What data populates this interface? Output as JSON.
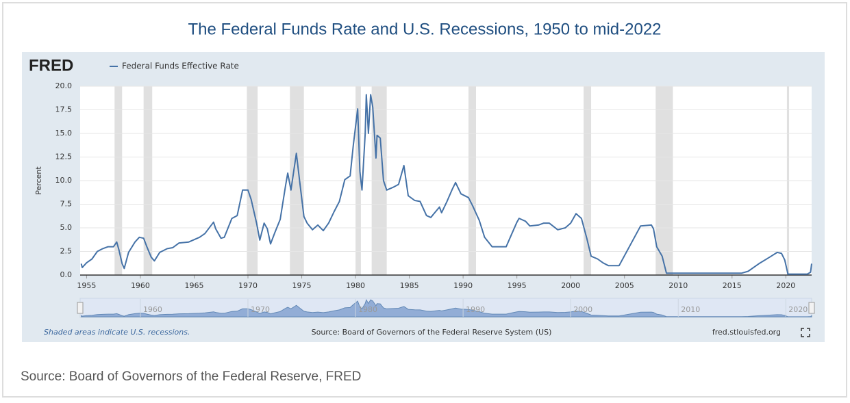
{
  "chart_data": {
    "type": "line",
    "title": "The Federal Funds Rate and U.S. Recessions, 1950 to mid-2022",
    "logo": "FRED",
    "ylabel": "Percent",
    "note": "Shaded areas indicate U.S. recessions.",
    "source": "Source: Board of Governors of the Federal Reserve System (US)",
    "site": "fred.stlouisfed.org",
    "caption": "Source: Board of Governors of the Federal Reserve, FRED",
    "xlim": [
      1954.4,
      2022.4
    ],
    "xticks": [
      1955,
      1960,
      1965,
      1970,
      1975,
      1980,
      1985,
      1990,
      1995,
      2000,
      2005,
      2010,
      2015,
      2020
    ],
    "navigator_ticks": [
      1960,
      1970,
      1980,
      1990,
      2000,
      2010,
      2020
    ],
    "ylim": [
      0,
      20
    ],
    "yticks": [
      {
        "value": 0,
        "label": "0.0"
      },
      {
        "value": 2.5,
        "label": "2.5"
      },
      {
        "value": 5,
        "label": "5.0"
      },
      {
        "value": 7.5,
        "label": "7.5"
      },
      {
        "value": 10,
        "label": "10.0"
      },
      {
        "value": 12.5,
        "label": "12.5"
      },
      {
        "value": 15,
        "label": "15.0"
      },
      {
        "value": 17.5,
        "label": "17.5"
      },
      {
        "value": 20,
        "label": "20.0"
      }
    ],
    "grid": true,
    "recession_color": "#e0e0e0",
    "recessions": [
      [
        1957.6,
        1958.3
      ],
      [
        1960.3,
        1961.1
      ],
      [
        1969.9,
        1970.9
      ],
      [
        1973.9,
        1975.2
      ],
      [
        1980.0,
        1980.5
      ],
      [
        1981.5,
        1982.9
      ],
      [
        1990.5,
        1991.2
      ],
      [
        2001.2,
        2001.9
      ],
      [
        2007.9,
        2009.5
      ],
      [
        2020.1,
        2020.3
      ]
    ],
    "x": [
      1954.5,
      1954.6,
      1955.0,
      1955.5,
      1956.0,
      1956.5,
      1957.0,
      1957.5,
      1957.8,
      1958.0,
      1958.3,
      1958.5,
      1958.9,
      1959.5,
      1959.9,
      1960.3,
      1960.6,
      1961.0,
      1961.3,
      1961.8,
      1962.5,
      1963.0,
      1963.6,
      1964.5,
      1965.5,
      1966.0,
      1966.8,
      1967.0,
      1967.5,
      1967.8,
      1968.5,
      1969.0,
      1969.5,
      1970.0,
      1970.3,
      1970.8,
      1971.1,
      1971.5,
      1971.8,
      1972.1,
      1972.5,
      1973.0,
      1973.5,
      1973.7,
      1974.0,
      1974.5,
      1974.8,
      1975.2,
      1975.5,
      1976.0,
      1976.5,
      1977.0,
      1977.5,
      1978.0,
      1978.5,
      1979.0,
      1979.5,
      1979.8,
      1980.2,
      1980.4,
      1980.6,
      1980.9,
      1981.0,
      1981.2,
      1981.4,
      1981.6,
      1981.9,
      1982.0,
      1982.3,
      1982.6,
      1982.9,
      1983.5,
      1984.0,
      1984.5,
      1984.9,
      1985.5,
      1986.0,
      1986.6,
      1987.0,
      1987.8,
      1988.0,
      1988.5,
      1989.0,
      1989.3,
      1989.8,
      1990.5,
      1990.9,
      1991.5,
      1992.0,
      1992.7,
      1993.5,
      1994.0,
      1994.5,
      1995.0,
      1995.2,
      1995.8,
      1996.2,
      1997.0,
      1997.5,
      1998.0,
      1998.8,
      1999.5,
      2000.0,
      2000.5,
      2001.0,
      2001.5,
      2001.9,
      2002.5,
      2003.0,
      2003.5,
      2004.5,
      2006.5,
      2007.5,
      2007.7,
      2008.0,
      2008.5,
      2008.9,
      2010.0,
      2015.9,
      2016.5,
      2017.5,
      2018.5,
      2019.2,
      2019.6,
      2019.9,
      2020.2,
      2022.0,
      2022.3,
      2022.4
    ],
    "series": [
      {
        "name": "Federal Funds Effective Rate",
        "color": "#4572a7",
        "values": [
          1.2,
          0.8,
          1.3,
          1.7,
          2.5,
          2.8,
          3.0,
          3.0,
          3.5,
          2.7,
          1.2,
          0.7,
          2.4,
          3.5,
          4.0,
          3.9,
          3.0,
          1.9,
          1.5,
          2.4,
          2.8,
          2.9,
          3.4,
          3.5,
          4.0,
          4.4,
          5.6,
          4.9,
          3.9,
          4.0,
          6.0,
          6.3,
          9.0,
          9.0,
          8.0,
          5.5,
          3.7,
          5.5,
          4.9,
          3.3,
          4.5,
          5.9,
          9.5,
          10.8,
          9.0,
          12.9,
          10.0,
          6.2,
          5.5,
          4.8,
          5.3,
          4.7,
          5.5,
          6.7,
          7.8,
          10.1,
          10.5,
          13.8,
          17.6,
          11.0,
          9.0,
          15.0,
          19.1,
          15.0,
          19.1,
          17.8,
          12.4,
          14.8,
          14.5,
          10.0,
          9.0,
          9.3,
          9.6,
          11.6,
          8.4,
          7.9,
          7.8,
          6.3,
          6.1,
          7.2,
          6.6,
          7.8,
          9.1,
          9.8,
          8.6,
          8.2,
          7.3,
          5.8,
          4.0,
          3.0,
          3.0,
          3.0,
          4.3,
          5.6,
          6.0,
          5.7,
          5.2,
          5.3,
          5.5,
          5.5,
          4.8,
          5.0,
          5.5,
          6.5,
          6.0,
          3.9,
          2.0,
          1.7,
          1.3,
          1.0,
          1.0,
          5.2,
          5.3,
          4.9,
          3.0,
          2.0,
          0.2,
          0.2,
          0.2,
          0.4,
          1.2,
          1.9,
          2.4,
          2.3,
          1.6,
          0.1,
          0.1,
          0.3,
          1.2
        ]
      }
    ]
  }
}
